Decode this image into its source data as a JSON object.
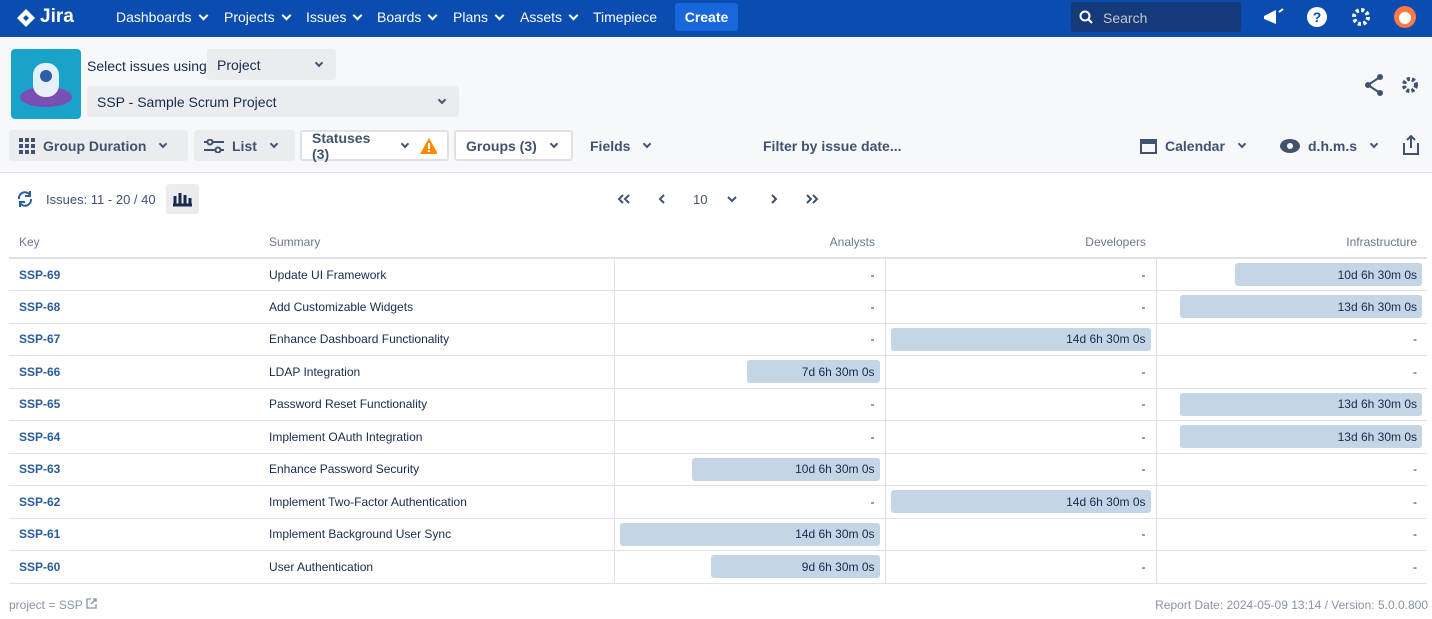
{
  "nav": {
    "logo": "Jira",
    "items": [
      "Dashboards",
      "Projects",
      "Issues",
      "Boards",
      "Plans",
      "Assets"
    ],
    "timepiece": "Timepiece",
    "create": "Create",
    "search": "Search"
  },
  "toolbar": {
    "select_label": "Select issues using",
    "select_value": "Project",
    "project": "SSP - Sample Scrum Project",
    "group": "Group Duration",
    "view": "List",
    "statuses": "Statuses (3)",
    "groups": "Groups (3)",
    "fields": "Fields",
    "filter": "Filter by issue date...",
    "calendar": "Calendar",
    "format": "d.h.m.s"
  },
  "pager": {
    "issues": "Issues: 11 - 20 / 40",
    "page_size": "10"
  },
  "table": {
    "columns": [
      "Key",
      "Summary",
      "Analysts",
      "Developers",
      "Infrastructure"
    ],
    "rows": [
      [
        "SSP-69",
        "Update UI Framework",
        "-",
        "-",
        "10d 6h 30m 0s"
      ],
      [
        "SSP-68",
        "Add Customizable Widgets",
        "-",
        "-",
        "13d 6h 30m 0s"
      ],
      [
        "SSP-67",
        "Enhance Dashboard Functionality",
        "-",
        "14d 6h 30m 0s",
        "-"
      ],
      [
        "SSP-66",
        "LDAP Integration",
        "7d 6h 30m 0s",
        "-",
        "-"
      ],
      [
        "SSP-65",
        "Password Reset Functionality",
        "-",
        "-",
        "13d 6h 30m 0s"
      ],
      [
        "SSP-64",
        "Implement OAuth Integration",
        "-",
        "-",
        "13d 6h 30m 0s"
      ],
      [
        "SSP-63",
        "Enhance Password Security",
        "10d 6h 30m 0s",
        "-",
        "-"
      ],
      [
        "SSP-62",
        "Implement Two-Factor Authentication",
        "-",
        "14d 6h 30m 0s",
        "-"
      ],
      [
        "SSP-61",
        "Implement Background User Sync",
        "14d 6h 30m 0s",
        "-",
        "-"
      ],
      [
        "SSP-60",
        "User Authentication",
        "9d 6h 30m 0s",
        "-",
        "-"
      ]
    ]
  },
  "footer": {
    "query": "project = SSP",
    "report": "Report Date: 2024-05-09 13:14 / Version: 5.0.0.800"
  }
}
